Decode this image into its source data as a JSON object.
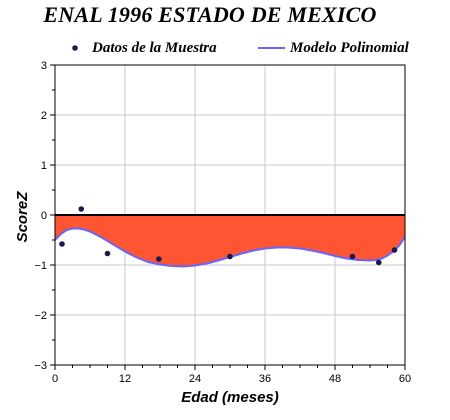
{
  "title": "ENAL 1996 ESTADO DE MEXICO",
  "legend": {
    "points_label": "Datos de la Muestra",
    "line_label": "Modelo Polinomial"
  },
  "colors": {
    "points": "#1a1a4d",
    "line": "#6666ff",
    "fill": "#ff5533",
    "zero_line": "#000000",
    "grid": "#c8c8c8"
  },
  "chart_data": {
    "type": "scatter",
    "title": "ENAL 1996 ESTADO DE MEXICO",
    "xlabel": "Edad (meses)",
    "ylabel": "ScoreZ",
    "xlim": [
      0,
      60
    ],
    "ylim": [
      -3,
      3
    ],
    "xticks": [
      0,
      12,
      24,
      36,
      48,
      60
    ],
    "yticks": [
      3,
      2,
      1,
      0,
      -1,
      -2,
      -3
    ],
    "ytick_labels": [
      "3",
      "2",
      "1",
      "0",
      "−1",
      "−2",
      "−3"
    ],
    "grid": true,
    "legend_position": "top",
    "fill_between": "zero and model curve",
    "series": [
      {
        "name": "Datos de la Muestra",
        "kind": "points",
        "points": [
          {
            "x": 1.2,
            "y": -0.58
          },
          {
            "x": 4.5,
            "y": 0.12
          },
          {
            "x": 9.0,
            "y": -0.77
          },
          {
            "x": 17.8,
            "y": -0.88
          },
          {
            "x": 30.0,
            "y": -0.83
          },
          {
            "x": 51.0,
            "y": -0.83
          },
          {
            "x": 55.5,
            "y": -0.95
          },
          {
            "x": 58.2,
            "y": -0.7
          }
        ]
      },
      {
        "name": "Modelo Polinomial",
        "kind": "line",
        "points": [
          {
            "x": 0,
            "y": -0.5
          },
          {
            "x": 1,
            "y": -0.38
          },
          {
            "x": 2,
            "y": -0.3
          },
          {
            "x": 3,
            "y": -0.27
          },
          {
            "x": 4,
            "y": -0.27
          },
          {
            "x": 5,
            "y": -0.29
          },
          {
            "x": 6,
            "y": -0.33
          },
          {
            "x": 8,
            "y": -0.45
          },
          {
            "x": 10,
            "y": -0.59
          },
          {
            "x": 12,
            "y": -0.73
          },
          {
            "x": 14,
            "y": -0.85
          },
          {
            "x": 16,
            "y": -0.94
          },
          {
            "x": 18,
            "y": -0.99
          },
          {
            "x": 20,
            "y": -1.02
          },
          {
            "x": 22,
            "y": -1.03
          },
          {
            "x": 24,
            "y": -1.01
          },
          {
            "x": 26,
            "y": -0.97
          },
          {
            "x": 28,
            "y": -0.91
          },
          {
            "x": 30,
            "y": -0.84
          },
          {
            "x": 32,
            "y": -0.77
          },
          {
            "x": 34,
            "y": -0.71
          },
          {
            "x": 36,
            "y": -0.67
          },
          {
            "x": 38,
            "y": -0.65
          },
          {
            "x": 40,
            "y": -0.65
          },
          {
            "x": 42,
            "y": -0.67
          },
          {
            "x": 44,
            "y": -0.71
          },
          {
            "x": 46,
            "y": -0.76
          },
          {
            "x": 48,
            "y": -0.82
          },
          {
            "x": 50,
            "y": -0.87
          },
          {
            "x": 52,
            "y": -0.9
          },
          {
            "x": 54,
            "y": -0.91
          },
          {
            "x": 55,
            "y": -0.9
          },
          {
            "x": 56,
            "y": -0.87
          },
          {
            "x": 57,
            "y": -0.81
          },
          {
            "x": 58,
            "y": -0.73
          },
          {
            "x": 59,
            "y": -0.61
          },
          {
            "x": 60,
            "y": -0.44
          }
        ]
      }
    ]
  }
}
